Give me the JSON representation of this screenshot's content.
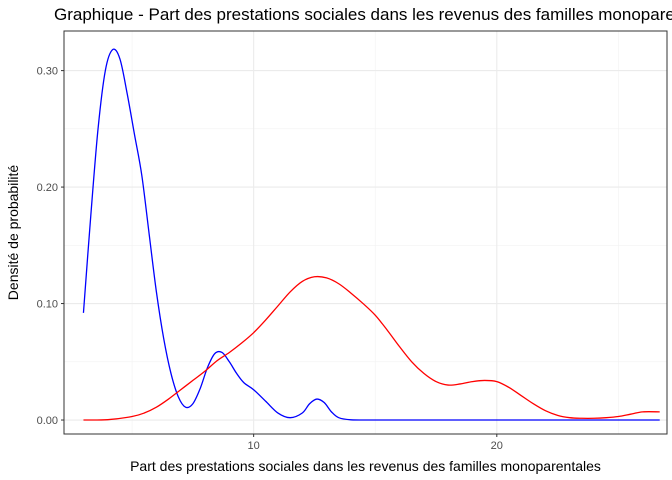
{
  "chart_data": {
    "type": "line",
    "title": "Graphique - Part des prestations sociales dans les revenus des familles monoparentales",
    "xlabel": "Part des prestations sociales dans les revenus des familles monoparentales",
    "ylabel": "Densité de probabilité",
    "xlim": [
      2.2,
      27.0
    ],
    "ylim": [
      -0.012,
      0.334
    ],
    "x_ticks": [
      {
        "value": 10,
        "label": "10"
      },
      {
        "value": 20,
        "label": "20"
      }
    ],
    "y_ticks": [
      {
        "value": 0,
        "label": "0.00"
      },
      {
        "value": 0.1,
        "label": "0.10"
      },
      {
        "value": 0.2,
        "label": "0.20"
      },
      {
        "value": 0.3,
        "label": "0.30"
      }
    ],
    "grid": true,
    "legend": "none",
    "series": [
      {
        "color": "#0000ff",
        "x": [
          3.0,
          3.3,
          3.6,
          3.9,
          4.2,
          4.5,
          4.8,
          5.1,
          5.4,
          5.7,
          6.0,
          6.3,
          6.6,
          6.9,
          7.2,
          7.5,
          7.8,
          8.1,
          8.4,
          8.7,
          9.0,
          9.3,
          9.6,
          10.0,
          10.5,
          11.0,
          11.5,
          12.0,
          12.3,
          12.6,
          12.9,
          13.2,
          13.5,
          14.0,
          15.0,
          17.0,
          20.0,
          23.0,
          26.7
        ],
        "values": [
          0.092,
          0.175,
          0.25,
          0.3,
          0.318,
          0.31,
          0.28,
          0.245,
          0.21,
          0.16,
          0.11,
          0.07,
          0.04,
          0.02,
          0.011,
          0.014,
          0.027,
          0.045,
          0.057,
          0.058,
          0.05,
          0.04,
          0.032,
          0.026,
          0.016,
          0.006,
          0.002,
          0.006,
          0.014,
          0.018,
          0.015,
          0.007,
          0.002,
          0.0002,
          0.0,
          0.0,
          0.0,
          0.0,
          0.0
        ]
      },
      {
        "color": "#ff0000",
        "x": [
          3.0,
          4.0,
          5.0,
          5.5,
          6.0,
          6.5,
          7.0,
          7.5,
          8.0,
          8.5,
          9.0,
          9.5,
          10.0,
          10.5,
          11.0,
          11.5,
          12.0,
          12.5,
          13.0,
          13.5,
          14.0,
          14.5,
          15.0,
          15.5,
          16.0,
          16.5,
          17.0,
          17.5,
          18.0,
          18.5,
          19.0,
          19.5,
          20.0,
          20.5,
          21.0,
          21.5,
          22.0,
          22.5,
          23.0,
          23.5,
          24.0,
          24.5,
          25.0,
          25.5,
          26.0,
          26.7
        ],
        "values": [
          0.0,
          0.0003,
          0.003,
          0.006,
          0.011,
          0.018,
          0.026,
          0.034,
          0.042,
          0.051,
          0.058,
          0.066,
          0.075,
          0.086,
          0.098,
          0.11,
          0.119,
          0.123,
          0.122,
          0.117,
          0.109,
          0.1,
          0.09,
          0.077,
          0.063,
          0.05,
          0.04,
          0.033,
          0.03,
          0.031,
          0.033,
          0.034,
          0.033,
          0.028,
          0.021,
          0.014,
          0.008,
          0.004,
          0.002,
          0.0015,
          0.0015,
          0.002,
          0.003,
          0.005,
          0.007,
          0.007
        ]
      }
    ]
  }
}
